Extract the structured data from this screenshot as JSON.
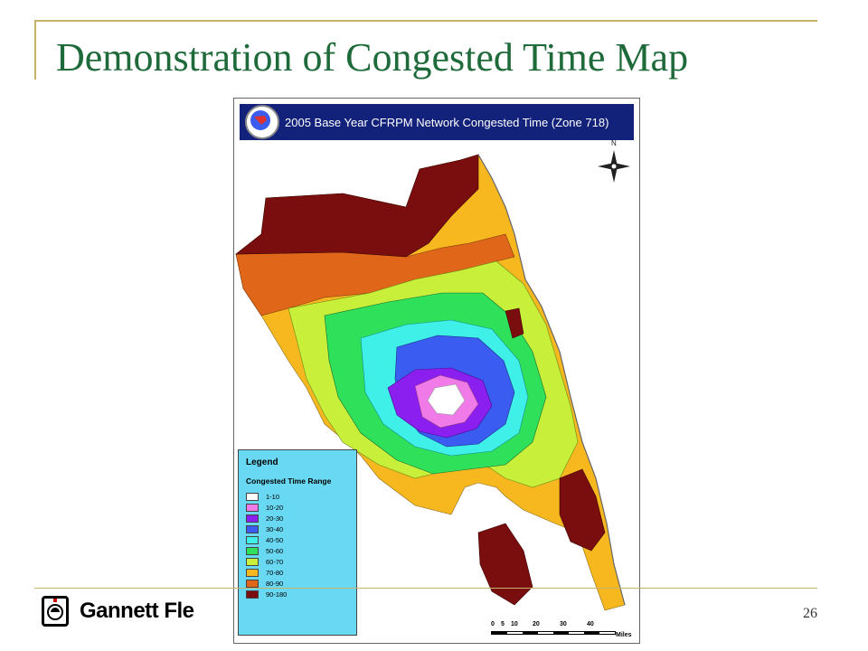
{
  "slide": {
    "title": "Demonstration of Congested Time Map",
    "page_number": "26",
    "logo_text": "Gannett Fle"
  },
  "map": {
    "banner_title": "2005 Base Year CFRPM Network Congested Time (Zone 718)",
    "north_label": "N",
    "legend": {
      "title": "Legend",
      "subtitle": "Congested Time Range",
      "items": [
        {
          "label": "1-10",
          "color": "#ffffff"
        },
        {
          "label": "10-20",
          "color": "#f07ae8"
        },
        {
          "label": "20-30",
          "color": "#8a1ff0"
        },
        {
          "label": "30-40",
          "color": "#3a5cf0"
        },
        {
          "label": "40-50",
          "color": "#3ef0e8"
        },
        {
          "label": "50-60",
          "color": "#2ee05a"
        },
        {
          "label": "60-70",
          "color": "#c8f03a"
        },
        {
          "label": "70-80",
          "color": "#f6b81e"
        },
        {
          "label": "80-90",
          "color": "#e0661a"
        },
        {
          "label": "90-180",
          "color": "#7a0d0d"
        }
      ]
    },
    "scale": {
      "ticks": [
        "0",
        "5",
        "10",
        "20",
        "30",
        "40"
      ],
      "unit": "Miles"
    }
  },
  "colors": {
    "title": "#1f6a3a",
    "frame": "#c5b36a",
    "banner": "#12217a",
    "legend_bg": "#69d8f2"
  }
}
